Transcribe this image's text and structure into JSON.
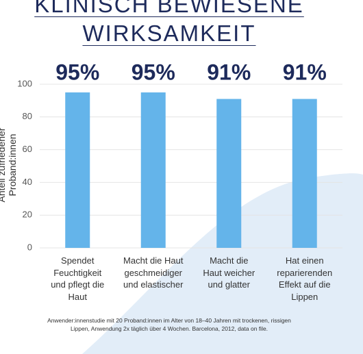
{
  "chart_data": {
    "type": "bar",
    "title": "KLINISCH BEWIESENE\nWIRKSAMKEIT",
    "y_label": "Anteil zufriedener Proband:innen",
    "categories": [
      "Spendet\nFeuchtigkeit\nund pflegt die\nHaut",
      "Macht die Haut\ngeschmeidiger\nund elastischer",
      "Macht die\nHaut weicher\nund glatter",
      "Hat einen\nreparierenden\nEffekt auf die\nLippen"
    ],
    "values": [
      95,
      95,
      91,
      91
    ],
    "value_labels": [
      "95%",
      "95%",
      "91%",
      "91%"
    ],
    "color": "#64b4ea",
    "ylim": [
      0,
      100
    ],
    "yticks": [
      0,
      20,
      40,
      60,
      80,
      100
    ],
    "grid": true,
    "footnote": "Anwender:innenstudie mit 20 Proband:innen im Alter von 18–40 Jahren mit trockenen, rissigen\nLippen, Anwendung 2x täglich über 4 Wochen. Barcelona, 2012, data on file."
  }
}
